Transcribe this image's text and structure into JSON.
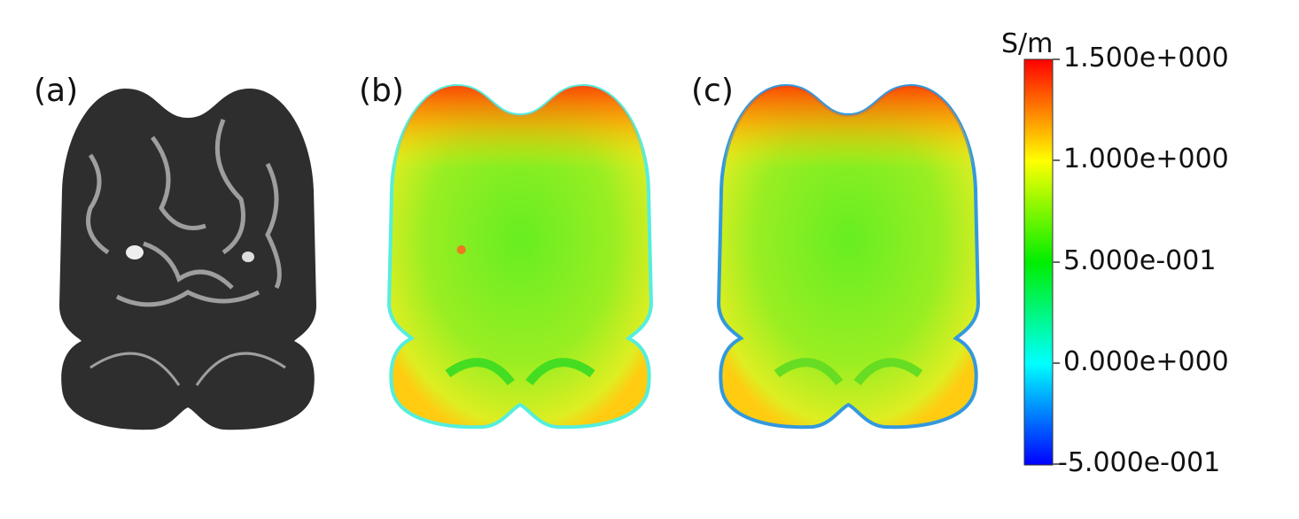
{
  "panels": [
    {
      "label": "(a)",
      "content": "grayscale brain slice"
    },
    {
      "label": "(b)",
      "content": "conductivity map"
    },
    {
      "label": "(c)",
      "content": "conductivity map"
    }
  ],
  "colorbar": {
    "unit": "S/m",
    "range": [
      -0.5,
      1.5
    ],
    "colormap": [
      "#0000ff",
      "#00ffff",
      "#00ff00",
      "#ffff00",
      "#ff0000"
    ],
    "ticks": [
      "1.500e+000",
      "1.000e+000",
      "5.000e-001",
      "0.000e+000",
      "-5.000e-001"
    ]
  }
}
